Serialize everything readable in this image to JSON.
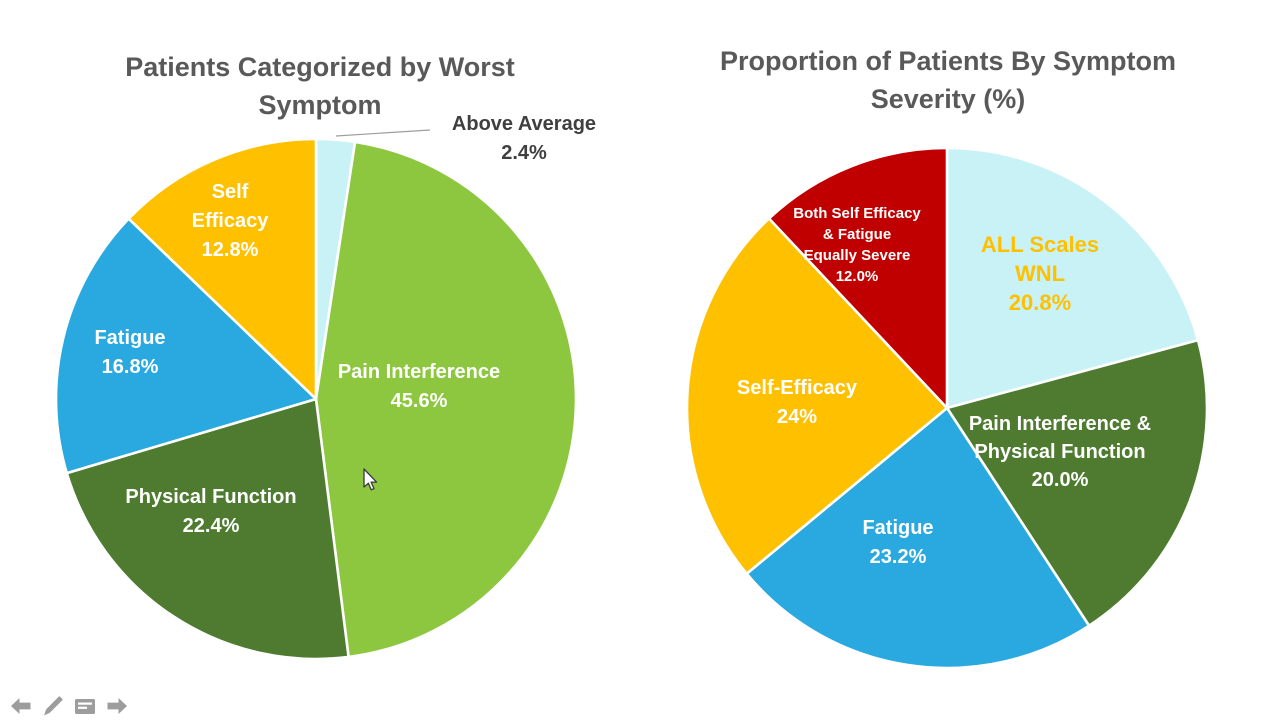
{
  "page": {
    "background": "#FFFFFF",
    "title_color": "#595959"
  },
  "chart_data": [
    {
      "type": "pie",
      "title": "Patients Categorized by Worst\nSymptom",
      "title_color": "#595959",
      "start_angle_deg": 0,
      "direction": "clockwise",
      "legend": "none",
      "slices": [
        {
          "label": "Above Average",
          "value": 2.4,
          "color": "#C8F2F6",
          "text": "Above Average\n2.4%",
          "text_color": "#3F3F3F",
          "label_outside": true
        },
        {
          "label": "Pain Interference",
          "value": 45.6,
          "color": "#8DC63F",
          "text": "Pain Interference\n45.6%",
          "text_color": "#FFFFFF"
        },
        {
          "label": "Physical Function",
          "value": 22.4,
          "color": "#4E7B30",
          "text": "Physical Function\n22.4%",
          "text_color": "#FFFFFF"
        },
        {
          "label": "Fatigue",
          "value": 16.8,
          "color": "#29A9E0",
          "text": "Fatigue\n16.8%",
          "text_color": "#FFFFFF"
        },
        {
          "label": "Self Efficacy",
          "value": 12.8,
          "color": "#FFC000",
          "text": "Self\nEfficacy\n12.8%",
          "text_color": "#FFFFFF"
        }
      ]
    },
    {
      "type": "pie",
      "title": "Proportion of Patients By Symptom\nSeverity (%)",
      "title_color": "#595959",
      "start_angle_deg": 0,
      "direction": "clockwise",
      "legend": "none",
      "slices": [
        {
          "label": "ALL Scales WNL",
          "value": 20.8,
          "color": "#C8F2F6",
          "text": "ALL Scales\nWNL\n20.8%",
          "text_color": "#FFC000"
        },
        {
          "label": "Pain Interference & Physical Function",
          "value": 20.0,
          "color": "#4E7B30",
          "text": "Pain Interference &\nPhysical Function\n20.0%",
          "text_color": "#FFFFFF"
        },
        {
          "label": "Fatigue",
          "value": 23.2,
          "color": "#29A9E0",
          "text": "Fatigue\n23.2%",
          "text_color": "#FFFFFF"
        },
        {
          "label": "Self-Efficacy",
          "value": 24,
          "color": "#FFC000",
          "text": "Self-Efficacy\n24%",
          "text_color": "#FFFFFF"
        },
        {
          "label": "Both Self Efficacy & Fatigue Equally Severe",
          "value": 12.0,
          "color": "#C00000",
          "text": "Both Self Efficacy\n& Fatigue\nEqually Severe\n12.0%",
          "text_color": "#FFFFFF"
        }
      ]
    }
  ],
  "presenter_controls": {
    "color": "#9D9D9D",
    "icons": [
      "arrow-left-icon",
      "pen-icon",
      "annotation-menu-icon",
      "arrow-right-icon"
    ]
  }
}
